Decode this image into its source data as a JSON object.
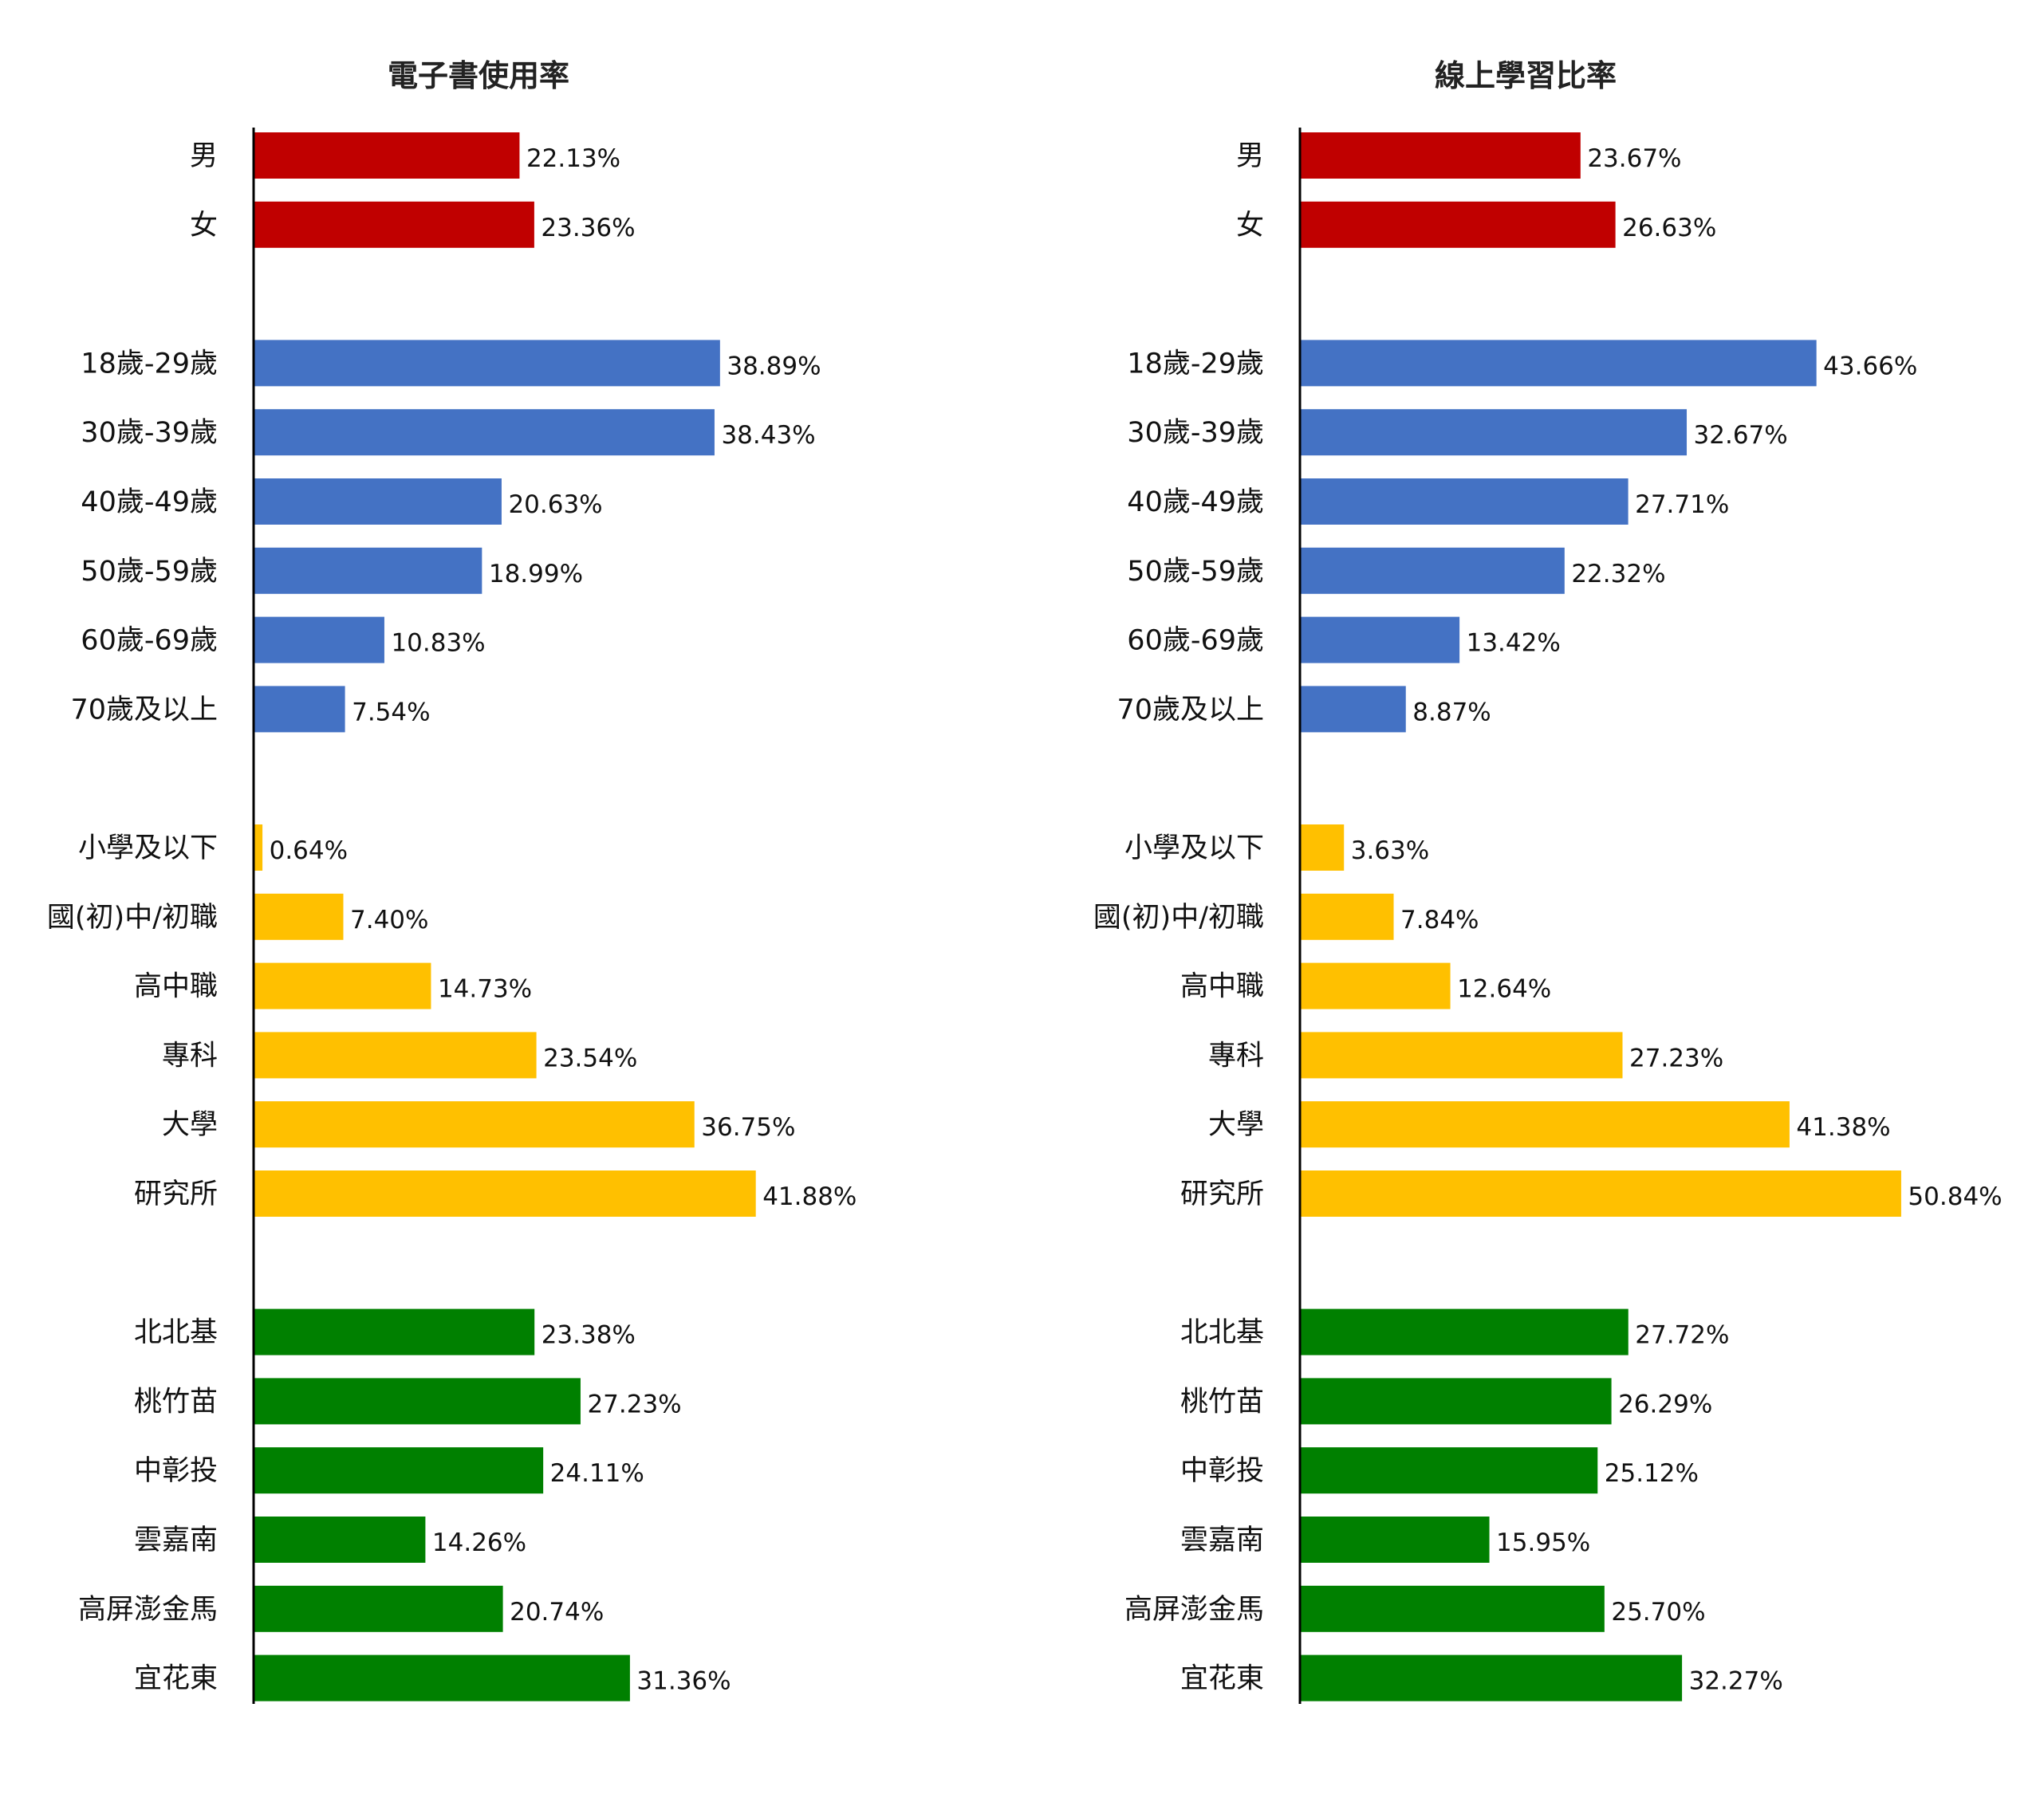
{
  "groups": [
    {
      "color": "#c00000",
      "categories": [
        "男",
        "女"
      ]
    },
    {
      "color": "#4472c4",
      "categories": [
        "18歲-29歲",
        "30歲-39歲",
        "40歲-49歲",
        "50歲-59歲",
        "60歲-69歲",
        "70歲及以上"
      ]
    },
    {
      "color": "#ffc000",
      "categories": [
        "小學及以下",
        "國(初)中/初職",
        "高中職",
        "專科",
        "大學",
        "研究所"
      ]
    },
    {
      "color": "#008000",
      "categories": [
        "北北基",
        "桃竹苗",
        "中彰投",
        "雲嘉南",
        "高屏澎金馬",
        "宜花東"
      ]
    }
  ],
  "chart_data": [
    {
      "type": "bar",
      "orientation": "horizontal",
      "title": "電子書使用率",
      "xlabel": "",
      "ylabel": "",
      "xlim": [
        0,
        50
      ],
      "grid": false,
      "categories": [
        "男",
        "女",
        "18歲-29歲",
        "30歲-39歲",
        "40歲-49歲",
        "50歲-59歲",
        "60歲-69歲",
        "70歲及以上",
        "小學及以下",
        "國(初)中/初職",
        "高中職",
        "專科",
        "大學",
        "研究所",
        "北北基",
        "桃竹苗",
        "中彰投",
        "雲嘉南",
        "高屏澎金馬",
        "宜花東"
      ],
      "values": [
        22.13,
        23.36,
        38.89,
        38.43,
        20.63,
        18.99,
        10.83,
        7.54,
        0.64,
        7.4,
        14.73,
        23.54,
        36.75,
        41.88,
        23.38,
        27.23,
        24.11,
        14.26,
        20.74,
        31.36
      ],
      "value_labels": [
        "22.13%",
        "23.36%",
        "38.89%",
        "38.43%",
        "20.63%",
        "18.99%",
        "10.83%",
        "7.54%",
        "0.64%",
        "7.40%",
        "14.73%",
        "23.54%",
        "36.75%",
        "41.88%",
        "23.38%",
        "27.23%",
        "24.11%",
        "14.26%",
        "20.74%",
        "31.36%"
      ]
    },
    {
      "type": "bar",
      "orientation": "horizontal",
      "title": "線上學習比率",
      "xlabel": "",
      "ylabel": "",
      "xlim": [
        0,
        50
      ],
      "grid": false,
      "categories": [
        "男",
        "女",
        "18歲-29歲",
        "30歲-39歲",
        "40歲-49歲",
        "50歲-59歲",
        "60歲-69歲",
        "70歲及以上",
        "小學及以下",
        "國(初)中/初職",
        "高中職",
        "專科",
        "大學",
        "研究所",
        "北北基",
        "桃竹苗",
        "中彰投",
        "雲嘉南",
        "高屏澎金馬",
        "宜花東"
      ],
      "values": [
        23.67,
        26.63,
        43.66,
        32.67,
        27.71,
        22.32,
        13.42,
        8.87,
        3.63,
        7.84,
        12.64,
        27.23,
        41.38,
        50.84,
        27.72,
        26.29,
        25.12,
        15.95,
        25.7,
        32.27
      ],
      "value_labels": [
        "23.67%",
        "26.63%",
        "43.66%",
        "32.67%",
        "27.71%",
        "22.32%",
        "13.42%",
        "8.87%",
        "3.63%",
        "7.84%",
        "12.64%",
        "27.23%",
        "41.38%",
        "50.84%",
        "27.72%",
        "26.29%",
        "25.12%",
        "15.95%",
        "25.70%",
        "32.27%"
      ]
    }
  ]
}
